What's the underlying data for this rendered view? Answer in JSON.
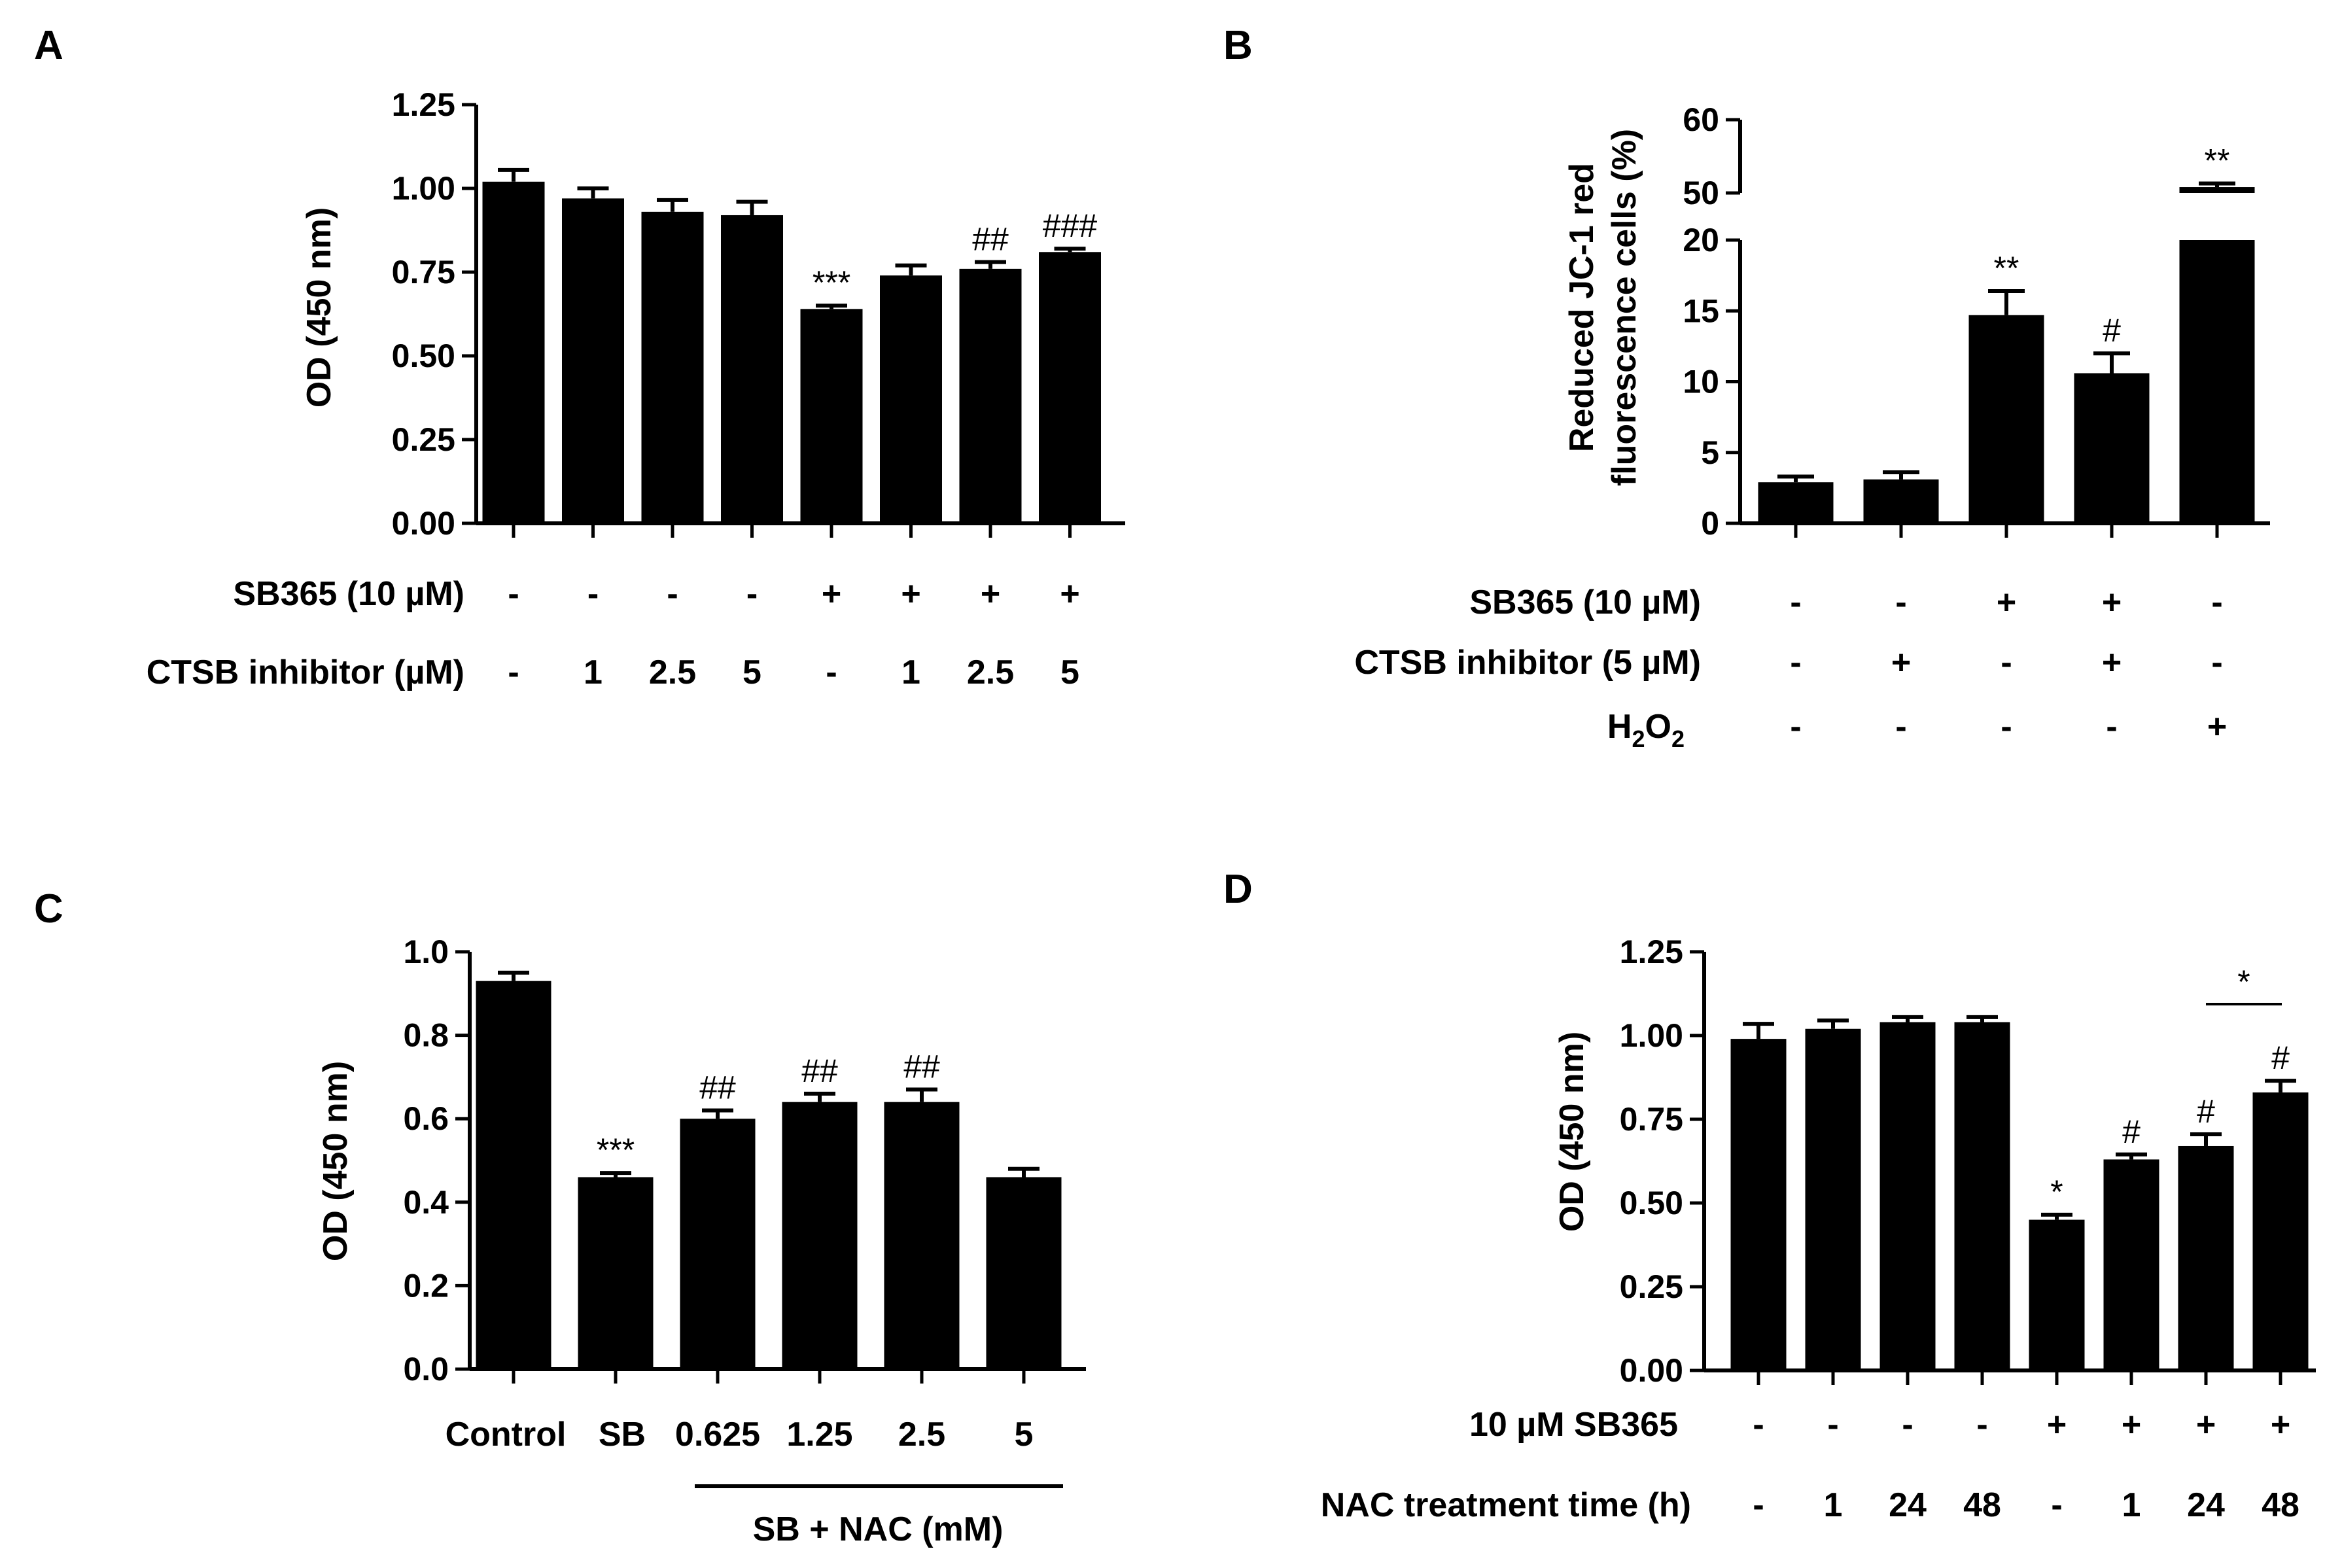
{
  "chart_data": [
    {
      "panel": "A",
      "type": "bar",
      "ylabel": "OD (450 nm)",
      "ylim": [
        0,
        1.25
      ],
      "yticks": [
        "0.00",
        "0.25",
        "0.50",
        "0.75",
        "1.00",
        "1.25"
      ],
      "values": [
        1.02,
        0.97,
        0.93,
        0.92,
        0.64,
        0.74,
        0.76,
        0.81
      ],
      "errors": [
        0.035,
        0.03,
        0.035,
        0.04,
        0.01,
        0.03,
        0.02,
        0.01
      ],
      "annotations": [
        "",
        "",
        "",
        "",
        "***",
        "",
        "##",
        "###"
      ],
      "condition_rows": [
        {
          "label": "SB365 (10 µM)",
          "values": [
            "-",
            "-",
            "-",
            "-",
            "+",
            "+",
            "+",
            "+"
          ]
        },
        {
          "label": "CTSB inhibitor (µM)",
          "values": [
            "-",
            "1",
            "2.5",
            "5",
            "-",
            "1",
            "2.5",
            "5"
          ]
        }
      ]
    },
    {
      "panel": "B",
      "type": "bar",
      "ylabel_line1": "Reduced JC-1 red",
      "ylabel_line2": "fluorescence cells (%)",
      "ylim_lower": [
        0,
        20
      ],
      "ylim_upper": [
        50,
        60
      ],
      "yticks_lower": [
        "0",
        "5",
        "10",
        "15",
        "20"
      ],
      "yticks_upper": [
        "50",
        "60"
      ],
      "values": [
        2.9,
        3.1,
        14.7,
        10.6,
        50.8
      ],
      "errors": [
        0.4,
        0.5,
        1.7,
        1.4,
        0.5
      ],
      "annotations": [
        "",
        "",
        "**",
        "#",
        "**"
      ],
      "condition_rows": [
        {
          "label": "SB365 (10 µM)",
          "values": [
            "-",
            "-",
            "+",
            "+",
            "-"
          ]
        },
        {
          "label": "CTSB inhibitor (5 µM)",
          "values": [
            "-",
            "+",
            "-",
            "+",
            "-"
          ]
        },
        {
          "label_main": "H",
          "label_sub1": "2",
          "label_mid": "O",
          "label_sub2": "2",
          "values": [
            "-",
            "-",
            "-",
            "-",
            "+"
          ]
        }
      ]
    },
    {
      "panel": "C",
      "type": "bar",
      "ylabel": "OD (450 nm)",
      "ylim": [
        0,
        1.0
      ],
      "yticks": [
        "0.0",
        "0.2",
        "0.4",
        "0.6",
        "0.8",
        "1.0"
      ],
      "categories": [
        "Control",
        "SB",
        "0.625",
        "1.25",
        "2.5",
        "5"
      ],
      "values": [
        0.93,
        0.46,
        0.6,
        0.64,
        0.64,
        0.46
      ],
      "errors": [
        0.02,
        0.01,
        0.02,
        0.02,
        0.03,
        0.02
      ],
      "annotations": [
        "",
        "***",
        "##",
        "##",
        "##",
        ""
      ],
      "group_label": "SB + NAC (mM)"
    },
    {
      "panel": "D",
      "type": "bar",
      "ylabel": "OD (450 nm)",
      "ylim": [
        0,
        1.25
      ],
      "yticks": [
        "0.00",
        "0.25",
        "0.50",
        "0.75",
        "1.00",
        "1.25"
      ],
      "values": [
        0.99,
        1.02,
        1.04,
        1.04,
        0.45,
        0.63,
        0.67,
        0.83
      ],
      "errors": [
        0.045,
        0.025,
        0.015,
        0.015,
        0.015,
        0.015,
        0.035,
        0.035
      ],
      "annotations": [
        "",
        "",
        "",
        "",
        "*",
        "#",
        "#",
        "#"
      ],
      "bracket_label": "*",
      "condition_rows": [
        {
          "label": "10 µM SB365",
          "values": [
            "-",
            "-",
            "-",
            "-",
            "+",
            "+",
            "+",
            "+"
          ]
        },
        {
          "label": "NAC treatment time (h)",
          "values": [
            "-",
            "1",
            "24",
            "48",
            "-",
            "1",
            "24",
            "48"
          ]
        }
      ]
    }
  ]
}
